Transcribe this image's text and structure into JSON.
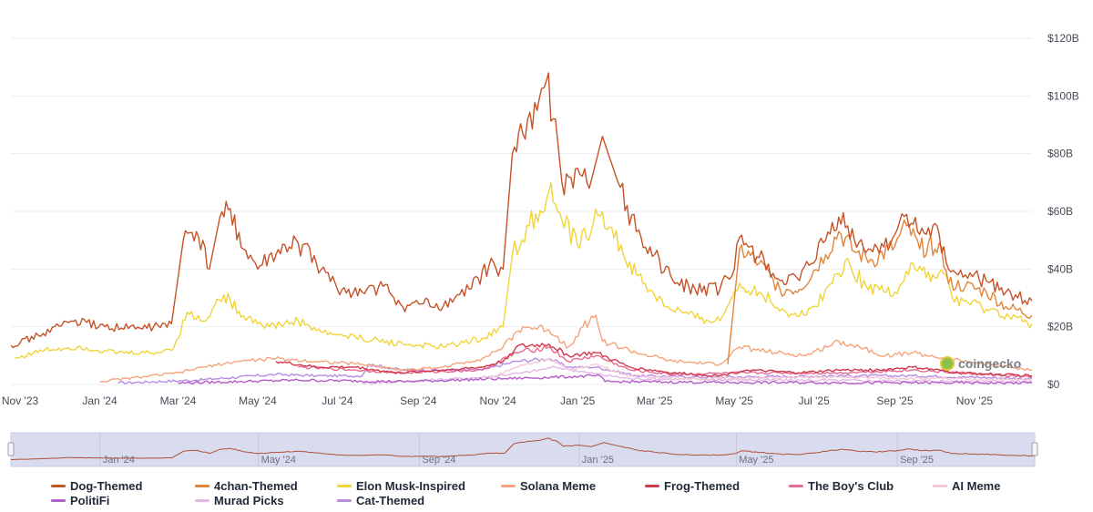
{
  "chart_data": {
    "type": "line",
    "x_axis": {
      "start": "2023-10-25",
      "end": "2025-12-15",
      "tick_labels": [
        "Nov '23",
        "Jan '24",
        "Mar '24",
        "May '24",
        "Jul '24",
        "Sep '24",
        "Nov '24",
        "Jan '25",
        "Mar '25",
        "May '25",
        "Jul '25",
        "Sep '25",
        "Nov '25"
      ],
      "tick_dates": [
        "2023-11-01",
        "2024-01-01",
        "2024-03-01",
        "2024-05-01",
        "2024-07-01",
        "2024-09-01",
        "2024-11-01",
        "2025-01-01",
        "2025-03-01",
        "2025-05-01",
        "2025-07-01",
        "2025-09-01",
        "2025-11-01"
      ]
    },
    "y_axis": {
      "position": "right",
      "ylim": [
        0,
        120
      ],
      "unit": "billion USD",
      "ticks": [
        0,
        20,
        40,
        60,
        80,
        100,
        120
      ],
      "tick_labels": [
        "$0",
        "$20B",
        "$40B",
        "$60B",
        "$80B",
        "$100B",
        "$120B"
      ]
    },
    "grid": true,
    "legend_position": "bottom",
    "series": [
      {
        "name": "Dog-Themed",
        "color": "#c5532a",
        "points": [
          [
            "2023-10-25",
            13.5
          ],
          [
            "2023-11-15",
            17
          ],
          [
            "2023-12-10",
            22
          ],
          [
            "2024-01-05",
            20
          ],
          [
            "2024-02-01",
            19.5
          ],
          [
            "2024-02-25",
            21
          ],
          [
            "2024-03-05",
            50
          ],
          [
            "2024-03-15",
            53
          ],
          [
            "2024-03-25",
            40
          ],
          [
            "2024-04-02",
            58
          ],
          [
            "2024-04-10",
            61
          ],
          [
            "2024-04-20",
            47
          ],
          [
            "2024-05-01",
            40
          ],
          [
            "2024-05-15",
            45
          ],
          [
            "2024-06-01",
            49
          ],
          [
            "2024-06-15",
            42
          ],
          [
            "2024-07-01",
            33
          ],
          [
            "2024-07-20",
            32
          ],
          [
            "2024-08-05",
            34
          ],
          [
            "2024-08-20",
            27
          ],
          [
            "2024-09-05",
            28
          ],
          [
            "2024-09-20",
            27
          ],
          [
            "2024-10-10",
            33
          ],
          [
            "2024-10-25",
            41
          ],
          [
            "2024-11-05",
            40
          ],
          [
            "2024-11-12",
            80
          ],
          [
            "2024-11-20",
            87
          ],
          [
            "2024-12-01",
            95
          ],
          [
            "2024-12-08",
            105
          ],
          [
            "2024-12-15",
            92
          ],
          [
            "2024-12-20",
            70
          ],
          [
            "2025-01-01",
            75
          ],
          [
            "2025-01-10",
            68
          ],
          [
            "2025-01-20",
            86
          ],
          [
            "2025-02-01",
            70
          ],
          [
            "2025-02-15",
            53
          ],
          [
            "2025-03-01",
            45
          ],
          [
            "2025-03-15",
            36
          ],
          [
            "2025-04-01",
            33
          ],
          [
            "2025-04-20",
            33
          ],
          [
            "2025-05-01",
            40
          ],
          [
            "2025-05-05",
            51
          ],
          [
            "2025-05-20",
            44
          ],
          [
            "2025-06-05",
            36
          ],
          [
            "2025-06-20",
            36
          ],
          [
            "2025-07-10",
            50
          ],
          [
            "2025-07-20",
            58
          ],
          [
            "2025-08-01",
            50
          ],
          [
            "2025-08-15",
            46
          ],
          [
            "2025-09-01",
            52
          ],
          [
            "2025-09-10",
            59
          ],
          [
            "2025-09-20",
            52
          ],
          [
            "2025-10-05",
            52
          ],
          [
            "2025-10-12",
            40
          ],
          [
            "2025-10-25",
            38
          ],
          [
            "2025-11-10",
            36
          ],
          [
            "2025-11-25",
            32
          ],
          [
            "2025-12-15",
            29
          ]
        ]
      },
      {
        "name": "4chan-Themed",
        "color": "#e0853c",
        "points": [
          [
            "2025-04-26",
            7
          ],
          [
            "2025-05-05",
            47
          ],
          [
            "2025-05-20",
            42
          ],
          [
            "2025-06-05",
            33
          ],
          [
            "2025-06-20",
            33
          ],
          [
            "2025-07-10",
            45
          ],
          [
            "2025-07-20",
            53
          ],
          [
            "2025-08-01",
            46
          ],
          [
            "2025-08-15",
            43
          ],
          [
            "2025-09-01",
            48
          ],
          [
            "2025-09-10",
            55
          ],
          [
            "2025-09-20",
            47
          ],
          [
            "2025-10-05",
            49
          ],
          [
            "2025-10-12",
            35
          ],
          [
            "2025-10-25",
            34
          ],
          [
            "2025-11-10",
            32
          ],
          [
            "2025-11-25",
            27
          ],
          [
            "2025-12-15",
            24
          ]
        ]
      },
      {
        "name": "Elon Musk-Inspired",
        "color": "#f0d43a",
        "points": [
          [
            "2023-10-28",
            9
          ],
          [
            "2023-11-20",
            12
          ],
          [
            "2023-12-15",
            13
          ],
          [
            "2024-01-15",
            11
          ],
          [
            "2024-02-15",
            11
          ],
          [
            "2024-02-27",
            13
          ],
          [
            "2024-03-08",
            25
          ],
          [
            "2024-03-20",
            22
          ],
          [
            "2024-04-05",
            31
          ],
          [
            "2024-04-20",
            24
          ],
          [
            "2024-05-10",
            20
          ],
          [
            "2024-06-01",
            22
          ],
          [
            "2024-06-20",
            18
          ],
          [
            "2024-07-20",
            16
          ],
          [
            "2024-08-20",
            14
          ],
          [
            "2024-09-20",
            13
          ],
          [
            "2024-10-20",
            16
          ],
          [
            "2024-11-05",
            20
          ],
          [
            "2024-11-12",
            45
          ],
          [
            "2024-11-25",
            55
          ],
          [
            "2024-12-10",
            67
          ],
          [
            "2024-12-20",
            57
          ],
          [
            "2025-01-01",
            48
          ],
          [
            "2025-01-20",
            60
          ],
          [
            "2025-02-05",
            45
          ],
          [
            "2025-02-20",
            35
          ],
          [
            "2025-03-10",
            27
          ],
          [
            "2025-04-01",
            23
          ],
          [
            "2025-04-20",
            22
          ],
          [
            "2025-05-05",
            35
          ],
          [
            "2025-05-20",
            32
          ],
          [
            "2025-06-10",
            25
          ],
          [
            "2025-06-25",
            24
          ],
          [
            "2025-07-15",
            35
          ],
          [
            "2025-07-25",
            43
          ],
          [
            "2025-08-10",
            34
          ],
          [
            "2025-09-01",
            32
          ],
          [
            "2025-09-15",
            42
          ],
          [
            "2025-09-25",
            37
          ],
          [
            "2025-10-10",
            38
          ],
          [
            "2025-10-15",
            30
          ],
          [
            "2025-11-10",
            26
          ],
          [
            "2025-12-15",
            21
          ]
        ]
      },
      {
        "name": "Solana Meme",
        "color": "#f5a47c",
        "points": [
          [
            "2024-01-01",
            1
          ],
          [
            "2024-03-01",
            4
          ],
          [
            "2024-03-20",
            6
          ],
          [
            "2024-04-15",
            8
          ],
          [
            "2024-05-15",
            9
          ],
          [
            "2024-06-15",
            8
          ],
          [
            "2024-07-20",
            7
          ],
          [
            "2024-08-20",
            5
          ],
          [
            "2024-09-20",
            6
          ],
          [
            "2024-10-20",
            9
          ],
          [
            "2024-11-05",
            13
          ],
          [
            "2024-11-20",
            20
          ],
          [
            "2024-12-10",
            19
          ],
          [
            "2024-12-25",
            13
          ],
          [
            "2025-01-05",
            20
          ],
          [
            "2025-01-15",
            24
          ],
          [
            "2025-01-20",
            15
          ],
          [
            "2025-02-15",
            11
          ],
          [
            "2025-03-15",
            8
          ],
          [
            "2025-04-20",
            7
          ],
          [
            "2025-05-05",
            13
          ],
          [
            "2025-06-01",
            11
          ],
          [
            "2025-06-25",
            10
          ],
          [
            "2025-07-20",
            15
          ],
          [
            "2025-08-05",
            13
          ],
          [
            "2025-08-25",
            10
          ],
          [
            "2025-09-15",
            11
          ],
          [
            "2025-10-10",
            9
          ],
          [
            "2025-11-10",
            7
          ],
          [
            "2025-12-15",
            5
          ]
        ]
      },
      {
        "name": "Frog-Themed",
        "color": "#d0384c",
        "points": [
          [
            "2024-05-15",
            8
          ],
          [
            "2024-06-15",
            6
          ],
          [
            "2024-07-15",
            6
          ],
          [
            "2024-08-15",
            4
          ],
          [
            "2024-09-20",
            5
          ],
          [
            "2024-10-20",
            6
          ],
          [
            "2024-11-05",
            8
          ],
          [
            "2024-11-15",
            13
          ],
          [
            "2024-12-10",
            14
          ],
          [
            "2024-12-25",
            10
          ],
          [
            "2025-01-15",
            11
          ],
          [
            "2025-02-10",
            6
          ],
          [
            "2025-03-15",
            4
          ],
          [
            "2025-04-20",
            3
          ],
          [
            "2025-05-10",
            5
          ],
          [
            "2025-06-20",
            4
          ],
          [
            "2025-07-20",
            5
          ],
          [
            "2025-08-20",
            5
          ],
          [
            "2025-09-15",
            6
          ],
          [
            "2025-10-20",
            4
          ],
          [
            "2025-12-15",
            3
          ]
        ]
      },
      {
        "name": "The Boy's Club",
        "color": "#e86a90",
        "points": [
          [
            "2024-06-01",
            6
          ],
          [
            "2024-07-15",
            5
          ],
          [
            "2024-08-20",
            4
          ],
          [
            "2024-10-20",
            5
          ],
          [
            "2024-11-15",
            11
          ],
          [
            "2024-12-10",
            13
          ],
          [
            "2024-12-25",
            8
          ],
          [
            "2025-01-15",
            10
          ],
          [
            "2025-02-10",
            5
          ],
          [
            "2025-03-15",
            3.5
          ],
          [
            "2025-05-10",
            4
          ],
          [
            "2025-07-20",
            4
          ],
          [
            "2025-09-15",
            5
          ],
          [
            "2025-12-15",
            2.5
          ]
        ]
      },
      {
        "name": "AI Meme",
        "color": "#f3c9d6",
        "points": [
          [
            "2024-10-25",
            2
          ],
          [
            "2024-11-15",
            6
          ],
          [
            "2024-12-10",
            9
          ],
          [
            "2024-12-25",
            5
          ],
          [
            "2025-01-15",
            7
          ],
          [
            "2025-02-10",
            3
          ],
          [
            "2025-04-01",
            2
          ],
          [
            "2025-07-20",
            2.5
          ],
          [
            "2025-12-15",
            1.5
          ]
        ]
      },
      {
        "name": "PolitiFi",
        "color": "#b35bc7",
        "points": [
          [
            "2024-03-01",
            0.5
          ],
          [
            "2024-06-01",
            1.5
          ],
          [
            "2024-08-20",
            1
          ],
          [
            "2024-11-05",
            2
          ],
          [
            "2025-01-18",
            3
          ],
          [
            "2025-01-22",
            1
          ],
          [
            "2025-05-01",
            0.7
          ],
          [
            "2025-12-15",
            0.5
          ]
        ]
      },
      {
        "name": "Murad Picks",
        "color": "#e3b8e6",
        "points": [
          [
            "2024-07-20",
            0.5
          ],
          [
            "2024-08-20",
            1
          ],
          [
            "2024-10-20",
            2.5
          ],
          [
            "2024-11-20",
            4
          ],
          [
            "2024-12-15",
            6
          ],
          [
            "2025-01-10",
            4
          ],
          [
            "2025-02-10",
            2
          ],
          [
            "2025-06-01",
            1.5
          ],
          [
            "2025-12-15",
            1
          ]
        ]
      },
      {
        "name": "Cat-Themed",
        "color": "#b78be5",
        "points": [
          [
            "2024-01-15",
            0.5
          ],
          [
            "2024-03-15",
            1.5
          ],
          [
            "2024-05-15",
            3.5
          ],
          [
            "2024-06-15",
            3
          ],
          [
            "2024-07-20",
            3
          ],
          [
            "2024-07-25",
            7
          ],
          [
            "2024-08-20",
            5
          ],
          [
            "2024-09-20",
            5
          ],
          [
            "2024-10-20",
            5
          ],
          [
            "2024-11-15",
            8
          ],
          [
            "2024-12-10",
            9
          ],
          [
            "2024-12-25",
            6
          ],
          [
            "2025-01-15",
            6
          ],
          [
            "2025-02-15",
            3
          ],
          [
            "2025-04-15",
            2.5
          ],
          [
            "2025-07-20",
            3
          ],
          [
            "2025-09-15",
            3
          ],
          [
            "2025-12-15",
            2
          ]
        ]
      }
    ],
    "watermark": "coingecko",
    "navigator": {
      "tick_labels": [
        "Jan '24",
        "May '24",
        "Sep '24",
        "Jan '25",
        "May '25",
        "Sep '25"
      ],
      "tick_dates": [
        "2024-01-01",
        "2024-05-01",
        "2024-09-01",
        "2025-01-01",
        "2025-05-01",
        "2025-09-01"
      ],
      "series_name": "Dog-Themed"
    }
  }
}
